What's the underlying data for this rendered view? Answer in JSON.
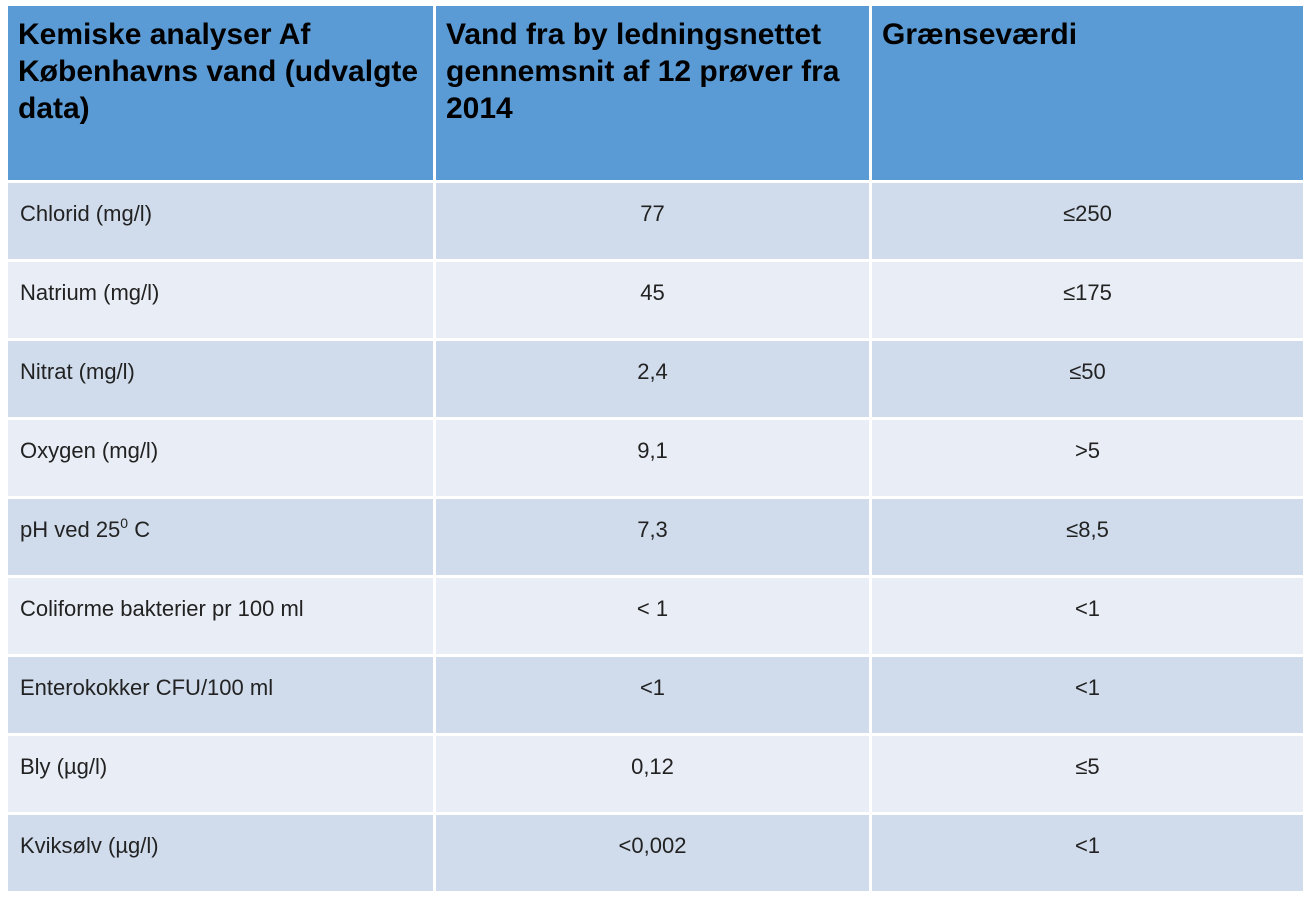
{
  "chart_data": {
    "type": "table",
    "columns": [
      "Kemiske analyser Af Københavns vand (udvalgte data)",
      "Vand fra by ledningsnettet gennemsnit af 12 prøver fra 2014",
      "Grænseværdi"
    ],
    "rows": [
      {
        "parameter": "Chlorid (mg/l)",
        "value": "77",
        "limit": "≤250"
      },
      {
        "parameter": "Natrium (mg/l)",
        "value": "45",
        "limit": "≤175"
      },
      {
        "parameter": "Nitrat (mg/l)",
        "value": "2,4",
        "limit": "≤50"
      },
      {
        "parameter": "Oxygen (mg/l)",
        "value": "9,1",
        "limit": ">5"
      },
      {
        "parameter": "pH ved 25",
        "parameter_superscript": "0",
        "parameter_suffix": " C",
        "value": "7,3",
        "limit": "≤8,5"
      },
      {
        "parameter": "Coliforme bakterier pr 100 ml",
        "value": "< 1",
        "limit": "<1"
      },
      {
        "parameter": "Enterokokker CFU/100 ml",
        "value": "<1",
        "limit": "<1"
      },
      {
        "parameter": "Bly (µg/l)",
        "value": "0,12",
        "limit": "≤5"
      },
      {
        "parameter": "Kviksølv (µg/l)",
        "value": "<0,002",
        "limit": "<1"
      }
    ]
  },
  "colors": {
    "header_bg": "#5b9bd5",
    "row_dark": "#d0dcec",
    "row_light": "#e9edf5"
  }
}
